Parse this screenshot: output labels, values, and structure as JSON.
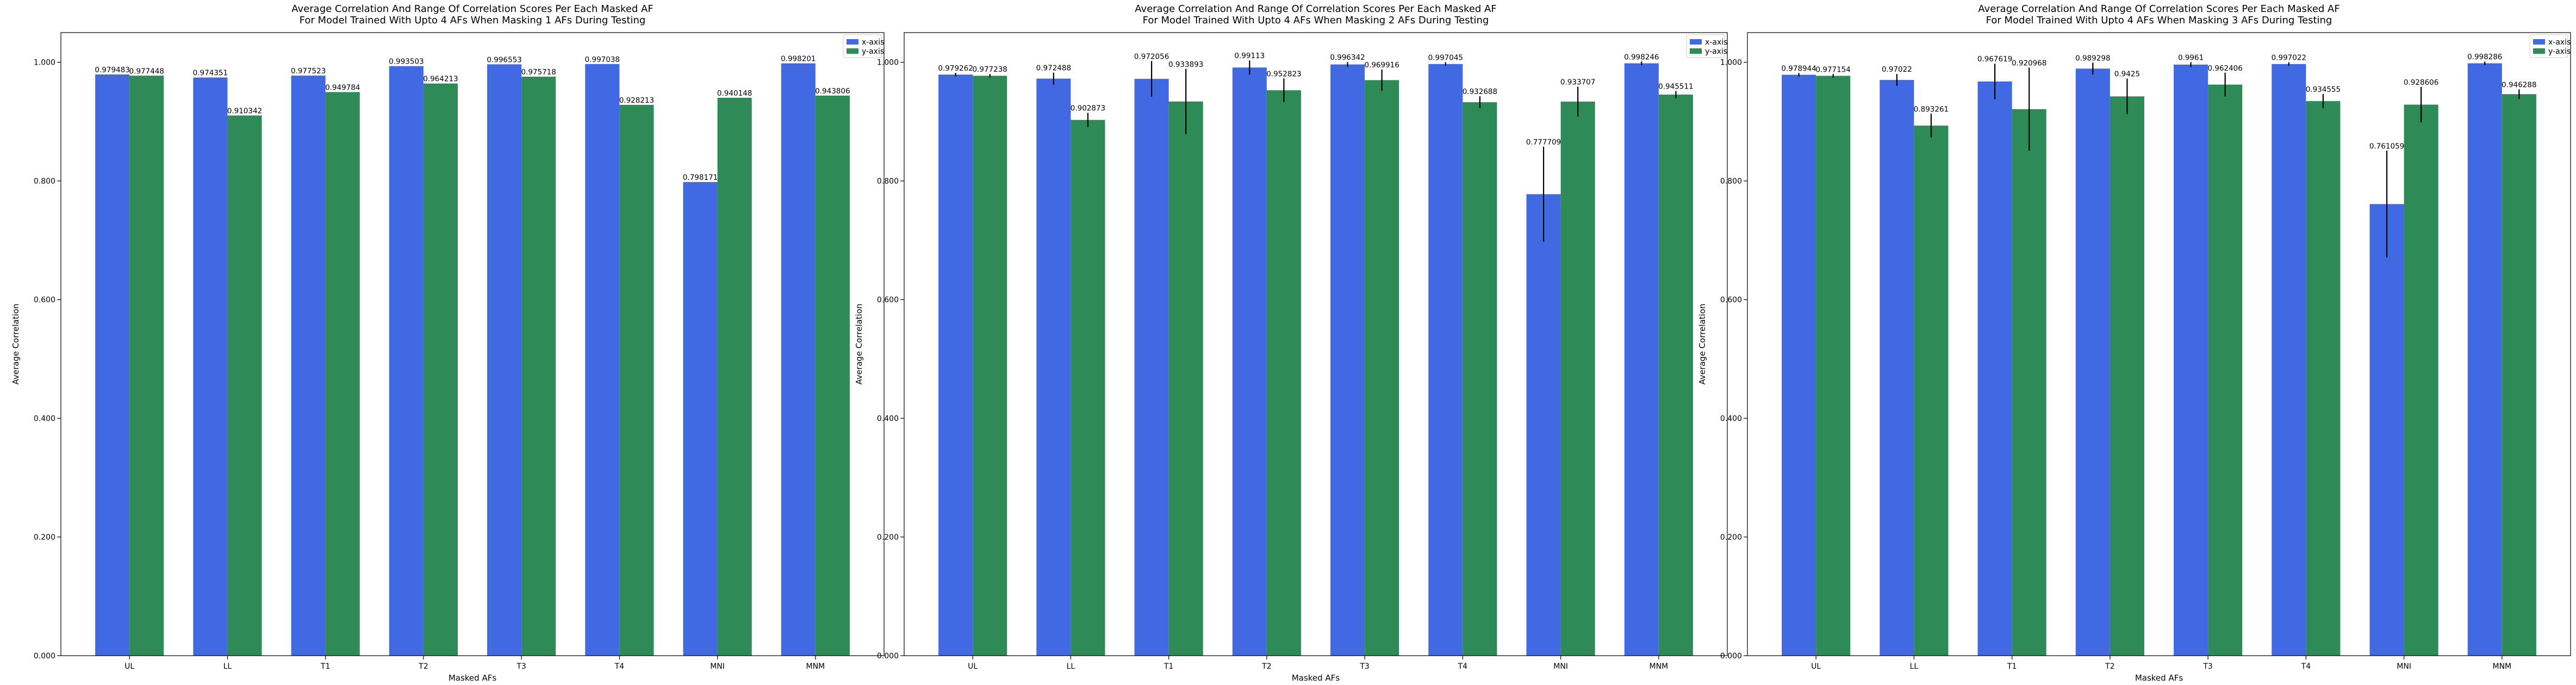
{
  "colors": {
    "x_axis": "#4169e1",
    "y_axis": "#2e8b57",
    "error_bar": "#000000",
    "frame": "#000000"
  },
  "chart_data": [
    {
      "type": "bar",
      "title_line1": "Average Correlation And Range Of Correlation Scores Per Each Masked AF",
      "title_line2": "For Model Trained With Upto 4 AFs When Masking 1 AFs During Testing",
      "xlabel": "Masked AFs",
      "ylabel": "Average Correlation",
      "ylim": [
        0,
        1.05
      ],
      "yticks": [
        "0.000",
        "0.200",
        "0.400",
        "0.600",
        "0.800",
        "1.000"
      ],
      "ytick_values": [
        0,
        0.2,
        0.4,
        0.6,
        0.8,
        1.0
      ],
      "legend_position": "top-right",
      "categories": [
        "UL",
        "LL",
        "T1",
        "T2",
        "T3",
        "T4",
        "MNI",
        "MNM"
      ],
      "series": [
        {
          "name": "x-axis",
          "values": [
            0.979483,
            0.974351,
            0.977523,
            0.993503,
            0.996553,
            0.997038,
            0.798171,
            0.998201
          ],
          "labels": [
            "0.979483",
            "0.974351",
            "0.977523",
            "0.993503",
            "0.996553",
            "0.997038",
            "0.798171",
            "0.998201"
          ],
          "error": [
            0,
            0,
            0,
            0,
            0,
            0,
            0,
            0
          ]
        },
        {
          "name": "y-axis",
          "values": [
            0.977448,
            0.910342,
            0.949784,
            0.964213,
            0.975718,
            0.928213,
            0.940148,
            0.943806
          ],
          "labels": [
            "0.977448",
            "0.910342",
            "0.949784",
            "0.964213",
            "0.975718",
            "0.928213",
            "0.940148",
            "0.943806"
          ],
          "error": [
            0,
            0,
            0,
            0,
            0,
            0,
            0,
            0
          ]
        }
      ]
    },
    {
      "type": "bar",
      "title_line1": "Average Correlation And Range Of Correlation Scores Per Each Masked AF",
      "title_line2": "For Model Trained With Upto 4 AFs When Masking 2 AFs During Testing",
      "xlabel": "Masked AFs",
      "ylabel": "Average Correlation",
      "ylim": [
        0,
        1.05
      ],
      "yticks": [
        "0.000",
        "0.200",
        "0.400",
        "0.600",
        "0.800",
        "1.000"
      ],
      "ytick_values": [
        0,
        0.2,
        0.4,
        0.6,
        0.8,
        1.0
      ],
      "legend_position": "top-right",
      "categories": [
        "UL",
        "LL",
        "T1",
        "T2",
        "T3",
        "T4",
        "MNI",
        "MNM"
      ],
      "series": [
        {
          "name": "x-axis",
          "values": [
            0.979262,
            0.972488,
            0.972056,
            0.99113,
            0.996342,
            0.997045,
            0.777709,
            0.998246
          ],
          "labels": [
            "0.979262",
            "0.972488",
            "0.972056",
            "0.99113",
            "0.996342",
            "0.997045",
            "0.777709",
            "0.998246"
          ],
          "error": [
            0.003,
            0.01,
            0.03,
            0.012,
            0.004,
            0.003,
            0.08,
            0.003
          ]
        },
        {
          "name": "y-axis",
          "values": [
            0.977238,
            0.902873,
            0.933893,
            0.952823,
            0.969916,
            0.932688,
            0.933707,
            0.945511
          ],
          "labels": [
            "0.977238",
            "0.902873",
            "0.933893",
            "0.952823",
            "0.969916",
            "0.932688",
            "0.933707",
            "0.945511"
          ],
          "error": [
            0.003,
            0.012,
            0.055,
            0.02,
            0.018,
            0.01,
            0.025,
            0.006
          ]
        }
      ]
    },
    {
      "type": "bar",
      "title_line1": "Average Correlation And Range Of Correlation Scores Per Each Masked AF",
      "title_line2": "For Model Trained With Upto 4 AFs When Masking 3 AFs During Testing",
      "xlabel": "Masked AFs",
      "ylabel": "Average Correlation",
      "ylim": [
        0,
        1.05
      ],
      "yticks": [
        "0.000",
        "0.200",
        "0.400",
        "0.600",
        "0.800",
        "1.000"
      ],
      "ytick_values": [
        0,
        0.2,
        0.4,
        0.6,
        0.8,
        1.0
      ],
      "legend_position": "top-right",
      "categories": [
        "UL",
        "LL",
        "T1",
        "T2",
        "T3",
        "T4",
        "MNI",
        "MNM"
      ],
      "series": [
        {
          "name": "x-axis",
          "values": [
            0.978944,
            0.97022,
            0.967619,
            0.989298,
            0.9961,
            0.997022,
            0.761059,
            0.998286
          ],
          "labels": [
            "0.978944",
            "0.97022",
            "0.967619",
            "0.989298",
            "0.9961",
            "0.997022",
            "0.761059",
            "0.998286"
          ],
          "error": [
            0.003,
            0.01,
            0.03,
            0.01,
            0.004,
            0.003,
            0.09,
            0.003
          ]
        },
        {
          "name": "y-axis",
          "values": [
            0.977154,
            0.893261,
            0.920968,
            0.9425,
            0.962406,
            0.934555,
            0.928606,
            0.946288
          ],
          "labels": [
            "0.977154",
            "0.893261",
            "0.920968",
            "0.9425",
            "0.962406",
            "0.934555",
            "0.928606",
            "0.946288"
          ],
          "error": [
            0.003,
            0.02,
            0.07,
            0.03,
            0.02,
            0.012,
            0.03,
            0.008
          ]
        }
      ]
    }
  ]
}
